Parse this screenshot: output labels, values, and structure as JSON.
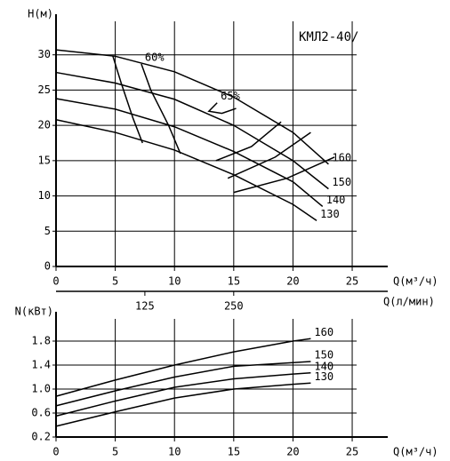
{
  "chart_data": [
    {
      "type": "line",
      "ylabel": "H(м)",
      "xlabel": "Q(м³/ч)",
      "annotation": "КМЛ2-40/",
      "xlim": [
        0,
        28
      ],
      "xticks": [
        0,
        5,
        10,
        15,
        20,
        25
      ],
      "ylim": [
        0,
        35
      ],
      "yticks": [
        0,
        5,
        10,
        15,
        20,
        25,
        30
      ],
      "x2label": "Q(л/мин)",
      "x2lim": [
        0,
        466.7
      ],
      "x2ticks": [
        125,
        250
      ],
      "grid": true,
      "color": "#000000",
      "series": [
        {
          "name": "160",
          "x": [
            0,
            5,
            10,
            15,
            20,
            23
          ],
          "values": [
            30.7,
            29.8,
            27.6,
            24,
            19,
            14.5
          ]
        },
        {
          "name": "150",
          "x": [
            0,
            5,
            10,
            15,
            20,
            23
          ],
          "values": [
            27.5,
            26,
            23.7,
            20,
            15,
            11
          ]
        },
        {
          "name": "140",
          "x": [
            0,
            5,
            10,
            15,
            20,
            22.5
          ],
          "values": [
            23.8,
            22.3,
            19.8,
            16.3,
            12,
            8.5
          ]
        },
        {
          "name": "130",
          "x": [
            0,
            5,
            10,
            15,
            20,
            22
          ],
          "values": [
            20.8,
            19,
            16.5,
            13,
            8.8,
            6.5
          ]
        },
        {
          "x": [
            7.3,
            6.5,
            5.5,
            4.8
          ],
          "values": [
            17.5,
            21,
            26,
            29.8
          ]
        },
        {
          "name": "60%",
          "x": [
            10.5,
            9.5,
            8,
            7.2
          ],
          "values": [
            16,
            20,
            25,
            28.7
          ]
        },
        {
          "name": "65%",
          "x": [
            15.2,
            14,
            12.9,
            13.6
          ],
          "values": [
            22.4,
            21.7,
            22,
            23.2
          ]
        },
        {
          "x": [
            13.5,
            16.5,
            19
          ],
          "values": [
            15,
            17,
            20.5
          ]
        },
        {
          "x": [
            14.5,
            18.5,
            21.5
          ],
          "values": [
            12.5,
            15.5,
            19
          ]
        },
        {
          "x": [
            15,
            19.5,
            23.5
          ],
          "values": [
            10.5,
            12.5,
            15.5
          ]
        }
      ]
    },
    {
      "type": "line",
      "ylabel": "N(кВт)",
      "xlabel": "Q(м³/ч)",
      "xlim": [
        0,
        28
      ],
      "xticks": [
        0,
        5,
        10,
        15,
        20,
        25
      ],
      "ylim": [
        0.2,
        2.2
      ],
      "yticks": [
        0.2,
        0.6,
        {
          "value": 1,
          "label": "1.0"
        },
        1.4,
        1.8
      ],
      "grid": true,
      "color": "#000000",
      "series": [
        {
          "name": "160",
          "x": [
            0,
            5,
            10,
            15,
            20,
            21.5
          ],
          "values": [
            0.88,
            1.15,
            1.4,
            1.62,
            1.8,
            1.84
          ]
        },
        {
          "name": "150",
          "x": [
            0,
            5,
            10,
            15,
            20,
            21.5
          ],
          "values": [
            0.72,
            0.97,
            1.2,
            1.38,
            1.44,
            1.46
          ]
        },
        {
          "name": "140",
          "x": [
            0,
            5,
            10,
            15,
            20,
            21.5
          ],
          "values": [
            0.55,
            0.8,
            1.03,
            1.17,
            1.25,
            1.27
          ]
        },
        {
          "name": "130",
          "x": [
            0,
            5,
            10,
            15,
            20,
            21.5
          ],
          "values": [
            0.38,
            0.62,
            0.85,
            1.0,
            1.08,
            1.1
          ]
        }
      ]
    }
  ]
}
